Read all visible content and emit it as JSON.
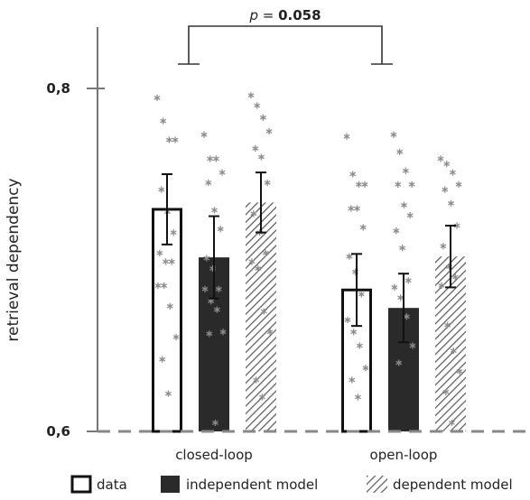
{
  "chart_data": {
    "type": "bar",
    "ylabel": "retrieval dependency",
    "yticks": [
      "0,6",
      "0,8"
    ],
    "ylim": [
      0.6,
      0.81
    ],
    "categories": [
      "closed-loop",
      "open-loop"
    ],
    "series": [
      {
        "name": "data",
        "style": "open",
        "values": [
          0.7295,
          0.6825
        ],
        "error": [
          0.0205,
          0.021
        ],
        "points": [
          [
            0.7945,
            0.781,
            0.77,
            0.77,
            0.741,
            0.728,
            0.716,
            0.704,
            0.699,
            0.699,
            0.685,
            0.685,
            0.673,
            0.655,
            0.642,
            0.622
          ],
          [
            0.772,
            0.75,
            0.744,
            0.744,
            0.73,
            0.73,
            0.719,
            0.702,
            0.693,
            0.68,
            0.665,
            0.658,
            0.65,
            0.637,
            0.63,
            0.62
          ]
        ]
      },
      {
        "name": "independent model",
        "style": "solid",
        "values": [
          0.7015,
          0.672
        ],
        "error": [
          0.024,
          0.02
        ],
        "points": [
          [
            0.773,
            0.759,
            0.759,
            0.751,
            0.745,
            0.729,
            0.718,
            0.701,
            0.695,
            0.683,
            0.683,
            0.676,
            0.671,
            0.658,
            0.657,
            0.605
          ],
          [
            0.773,
            0.763,
            0.752,
            0.744,
            0.744,
            0.732,
            0.726,
            0.717,
            0.707,
            0.688,
            0.684,
            0.678,
            0.667,
            0.65,
            0.64
          ]
        ]
      },
      {
        "name": "dependent model",
        "style": "hatched",
        "values": [
          0.7335,
          0.702
        ],
        "error": [
          0.0175,
          0.018
        ],
        "points": [
          [
            0.796,
            0.79,
            0.783,
            0.775,
            0.765,
            0.76,
            0.745,
            0.727,
            0.716,
            0.704,
            0.699,
            0.695,
            0.67,
            0.658,
            0.63,
            0.62
          ],
          [
            0.759,
            0.756,
            0.751,
            0.744,
            0.741,
            0.733,
            0.72,
            0.708,
            0.696,
            0.69,
            0.685,
            0.662,
            0.647,
            0.635,
            0.623,
            0.605
          ]
        ]
      }
    ],
    "significance": {
      "prefix": "p",
      "text": " = ",
      "value": "0.058"
    },
    "legend_position": "bottom",
    "grid": false
  }
}
